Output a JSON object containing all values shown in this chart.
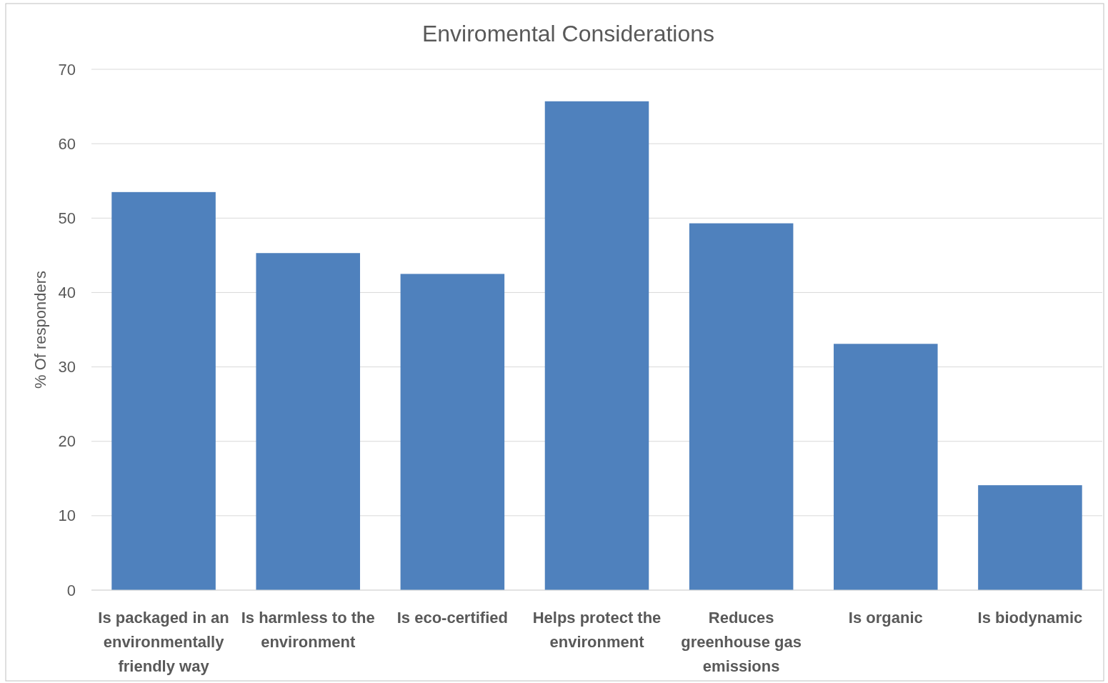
{
  "chart_data": {
    "type": "bar",
    "title": "Enviromental Considerations",
    "ylabel": "% Of responders",
    "categories": [
      "Is packaged in an environmentally friendly way",
      "Is harmless to the environment",
      "Is eco-certified",
      "Helps protect the environment",
      "Reduces greenhouse gas emissions",
      "Is organic",
      "Is biodynamic"
    ],
    "values": [
      53.5,
      45.3,
      42.5,
      65.7,
      49.3,
      33.1,
      14.1
    ],
    "color": "#4f81bd",
    "ylim": [
      0,
      70
    ],
    "yticks": [
      0,
      10,
      20,
      30,
      40,
      50,
      60,
      70
    ],
    "grid": "y"
  }
}
